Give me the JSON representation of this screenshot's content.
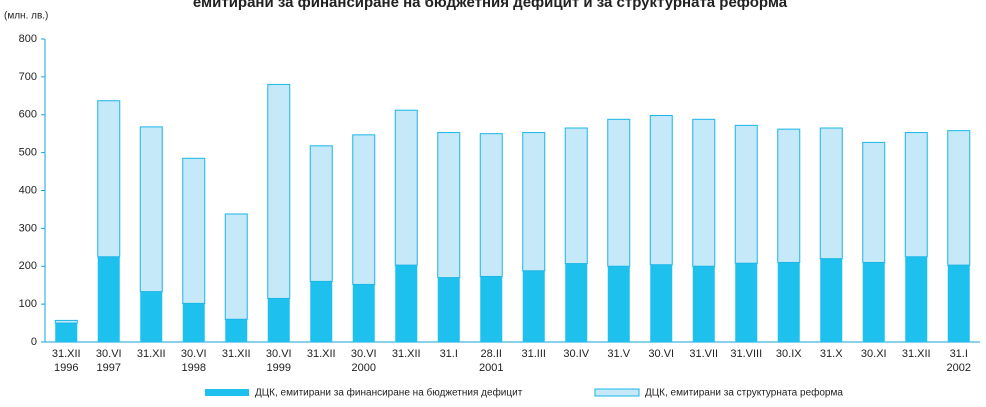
{
  "chart_data": {
    "type": "stacked_bar",
    "title": "емитирани за финансиране на бюджетния дефицит и за структурната реформа",
    "y_label": "(млн. лв.)",
    "categories": [
      "31.XII",
      "30.VI",
      "31.XII",
      "30.VI",
      "31.XII",
      "30.VI",
      "31.XII",
      "30.VI",
      "31.XII",
      "31.I",
      "28.II",
      "31.III",
      "30.IV",
      "31.V",
      "30.VI",
      "31.VII",
      "31.VIII",
      "30.IX",
      "31.X",
      "30.XI",
      "31.XII",
      "31.I"
    ],
    "year_labels": [
      "1996",
      "1997",
      null,
      "1998",
      null,
      "1999",
      null,
      "2000",
      null,
      null,
      "2001",
      null,
      null,
      null,
      null,
      null,
      null,
      null,
      null,
      null,
      null,
      "2002"
    ],
    "series": [
      {
        "name": "ДЦК, емитирани за финансиране на бюджетния дефицит",
        "color": "#1ec0ee",
        "values": [
          50,
          225,
          133,
          102,
          60,
          115,
          160,
          152,
          203,
          170,
          173,
          188,
          207,
          200,
          204,
          200,
          208,
          210,
          220,
          210,
          225,
          203
        ]
      },
      {
        "name": "ДЦК, емитирани за структурната реформа",
        "color": "#c5e9f8",
        "values": [
          7,
          412,
          435,
          383,
          278,
          565,
          358,
          395,
          409,
          383,
          377,
          365,
          358,
          388,
          394,
          388,
          364,
          352,
          345,
          317,
          328,
          355
        ]
      }
    ],
    "ylim": [
      0,
      800
    ],
    "yticks": [
      0,
      100,
      200,
      300,
      400,
      500,
      600,
      700,
      800
    ],
    "grid": false
  }
}
